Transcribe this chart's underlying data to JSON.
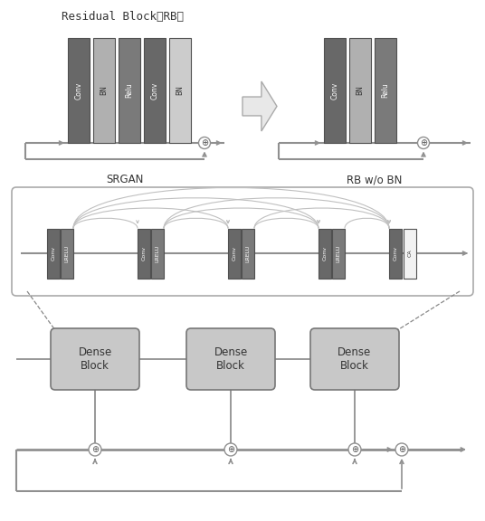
{
  "bg": "#ffffff",
  "c_dark": "#686868",
  "c_med_dark": "#7a7a7a",
  "c_light": "#b0b0b0",
  "c_vlight": "#cccccc",
  "c_white_box": "#f2f2f2",
  "c_dense": "#c8c8c8",
  "c_line": "#909090",
  "c_arc": "#c0c0c0",
  "title": "Residual Block（RB）",
  "lbl_srgan": "SRGAN",
  "lbl_rb": "RB w/o BN"
}
